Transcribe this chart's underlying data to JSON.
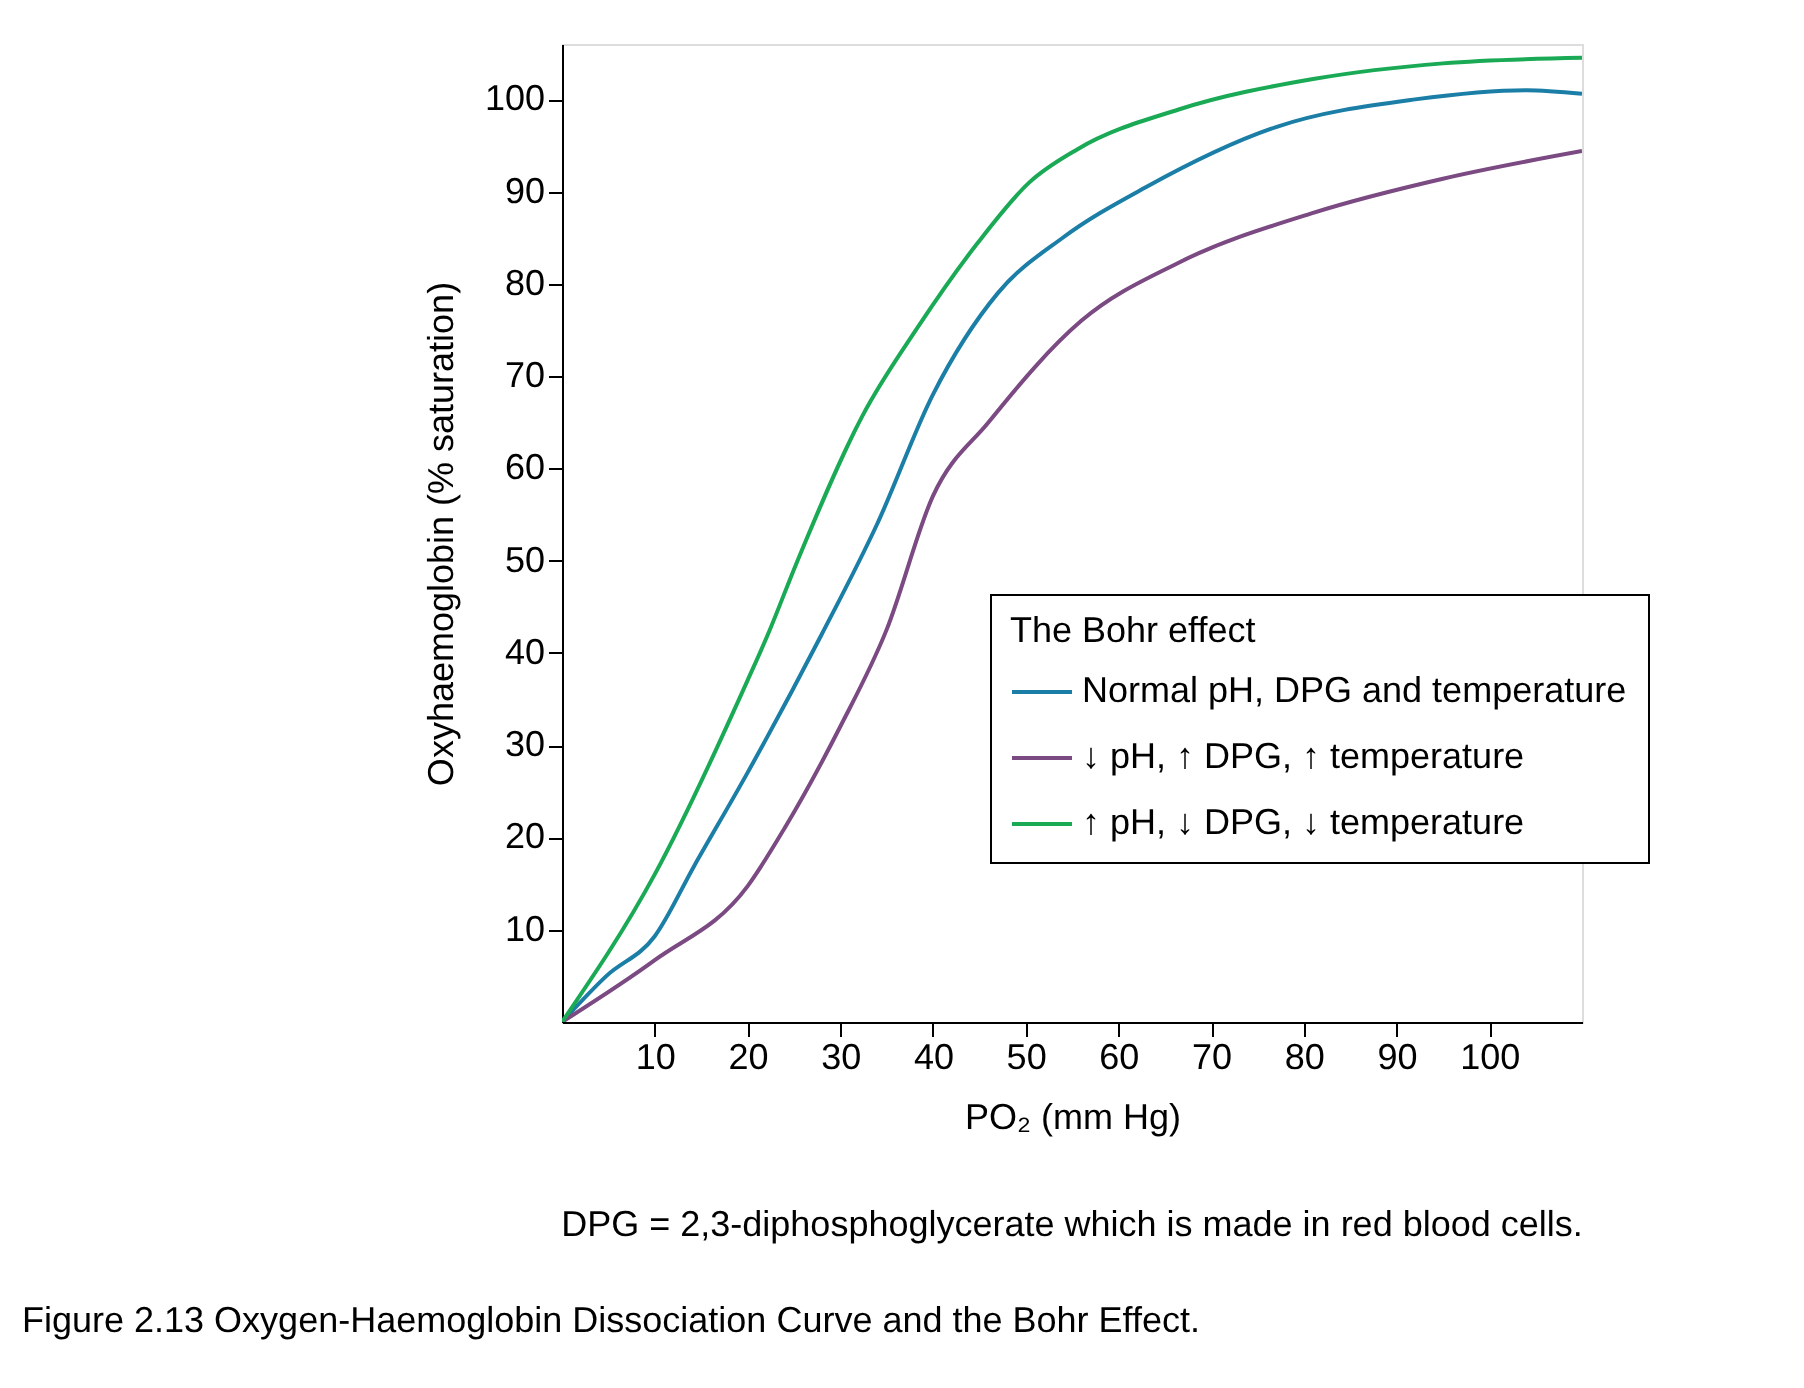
{
  "chart_data": {
    "type": "line",
    "xlabel": "PO₂ (mm Hg)",
    "ylabel": "Oxyhaemoglobin (% saturation)",
    "legend_title": "The Bohr effect",
    "xlim": [
      0,
      110
    ],
    "ylim": [
      0,
      106
    ],
    "xticks": [
      10,
      20,
      30,
      40,
      50,
      60,
      70,
      80,
      90,
      100
    ],
    "yticks": [
      10,
      20,
      30,
      40,
      50,
      60,
      70,
      80,
      90,
      100
    ],
    "grid": false,
    "legend": "right",
    "line_style": "solid",
    "marker": "none",
    "series": [
      {
        "name": "Normal pH, DPG and temperature",
        "color": "#1b7ea6",
        "x": [
          0,
          4.8,
          10,
          14.3,
          20,
          28,
          34,
          40,
          47,
          54,
          63,
          77,
          92,
          104,
          110
        ],
        "values": [
          0,
          5,
          9.3,
          17,
          27,
          42,
          54,
          68,
          79,
          85,
          90.5,
          97,
          100,
          101,
          100.6
        ]
      },
      {
        "name": "↓ pH, ↑ DPG, ↑ temperature",
        "color": "#7b4a82",
        "x": [
          0,
          10,
          20,
          24,
          30,
          35,
          40,
          46,
          56,
          66.5,
          81,
          95,
          110
        ],
        "values": [
          0,
          6.7,
          14.7,
          21,
          32,
          42.5,
          57,
          65,
          76,
          82.3,
          87.7,
          91.4,
          94.4
        ]
      },
      {
        "name": "↑ pH, ↓ DPG, ↓ temperature",
        "color": "#1aaa55",
        "x": [
          0,
          10,
          20,
          22.2,
          25.4,
          32.4,
          38.3,
          44.8,
          50.4,
          55.6,
          66.5,
          81,
          95,
          110
        ],
        "values": [
          0,
          16,
          37,
          42,
          50,
          65.7,
          75.2,
          84.4,
          91,
          94.6,
          98.9,
          102.2,
          103.9,
          104.5
        ]
      }
    ],
    "annotations": [
      "DPG = 2,3-diphosphoglycerate which is made in red blood cells.",
      "Figure 2.13  Oxygen-Haemoglobin Dissociation Curve and the Bohr Effect."
    ]
  }
}
